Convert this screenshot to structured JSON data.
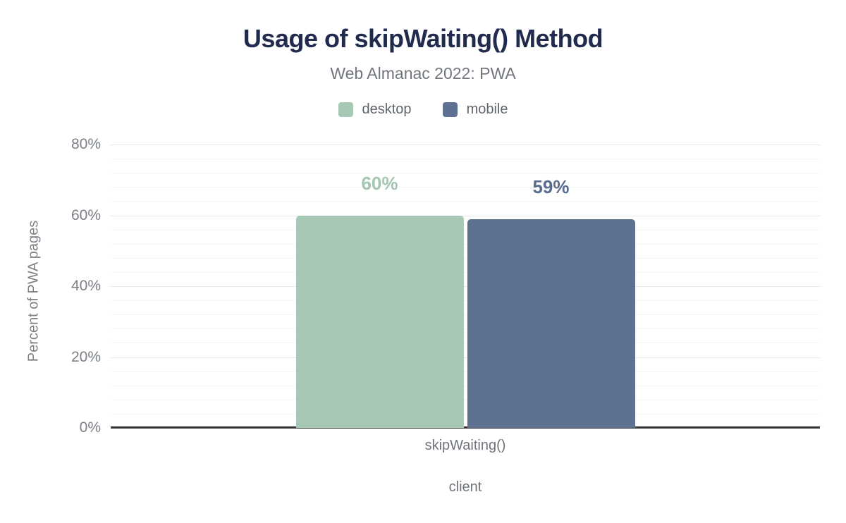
{
  "header": {
    "title": "Usage of skipWaiting() Method",
    "subtitle": "Web Almanac 2022: PWA"
  },
  "legend": [
    {
      "label": "desktop",
      "color": "#a6c8b4"
    },
    {
      "label": "mobile",
      "color": "#5f7190"
    }
  ],
  "chart_data": {
    "type": "bar",
    "title": "Usage of skipWaiting() Method",
    "subtitle": "Web Almanac 2022: PWA",
    "categories": [
      "skipWaiting()"
    ],
    "series": [
      {
        "name": "desktop",
        "values": [
          60
        ],
        "color": "#a6c8b4",
        "label_color": "#a3c6b1"
      },
      {
        "name": "mobile",
        "values": [
          59
        ],
        "color": "#5f7190",
        "label_color": "#596c8f"
      }
    ],
    "data_labels": [
      "60%",
      "59%"
    ],
    "xlabel": "client",
    "ylabel": "Percent of PWA pages",
    "ylim": [
      0,
      80
    ],
    "ytick_values": [
      0,
      20,
      40,
      60,
      80
    ],
    "yticks": [
      "0%",
      "20%",
      "40%",
      "60%",
      "80%"
    ],
    "minor_grid_step": 4,
    "grid": true,
    "legend_position": "top"
  },
  "colors": {
    "title": "#202b4e",
    "subtitle": "#72777e",
    "legend_text": "#60656c",
    "axis_text": "#7b8086",
    "axis_line": "#333333",
    "grid_major": "#e7e7e7",
    "grid_minor": "#f6f6f6",
    "background": "#ffffff"
  }
}
